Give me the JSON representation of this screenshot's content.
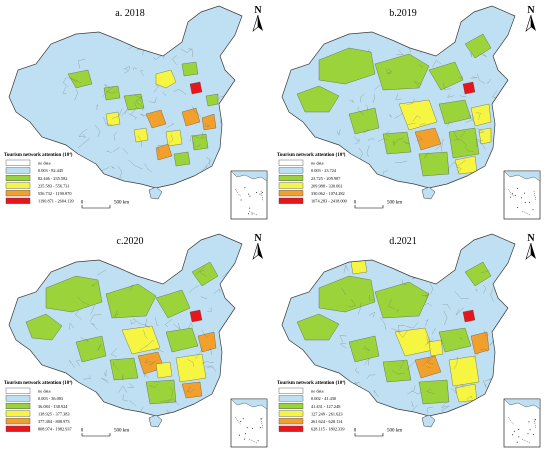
{
  "colors": {
    "no_data": "#ffffff",
    "class1": "#bfe0f2",
    "class2": "#9bd43a",
    "class3": "#f5f542",
    "class4": "#f2a02c",
    "class5": "#e8161b",
    "border": "#3a3a3a"
  },
  "north_label": "N",
  "scale_label": "500 km",
  "scale_zero": "0",
  "panels": [
    {
      "title": "a. 2018",
      "legend_title": "Tourism network attention (10⁴)",
      "classes": [
        "no data",
        "0.003 - 82.445",
        "82.446 - 235.582",
        "235.583 - 556.731",
        "556.732 - 1190.870",
        "1190.871 - 2604.139"
      ],
      "dominant": 1
    },
    {
      "title": "b.2019",
      "legend_title": "Tourism network attention (10⁴)",
      "classes": [
        "no data",
        "0.003 - 23.724",
        "23.725 - 209.987",
        "209.988 - 330.061",
        "330.062 - 1074.282",
        "1074.283 - 2418.000"
      ],
      "dominant": 1
    },
    {
      "title": "c.2020",
      "legend_title": "Tourism network attention (10⁴)",
      "classes": [
        "no data",
        "0.003 - 36.083",
        "36.084 - 138.924",
        "138.925 - 377.383",
        "377.384 - 808.973",
        "808.974 - 1982.937"
      ],
      "dominant": 1
    },
    {
      "title": "d.2021",
      "legend_title": "Tourism network attention (10⁴)",
      "classes": [
        "no data",
        "0.002 - 41.430",
        "41.431 - 127.248",
        "127.249 - 261.623",
        "261.624 - 628.114",
        "628.115 - 1802.339"
      ],
      "dominant": 1
    }
  ]
}
